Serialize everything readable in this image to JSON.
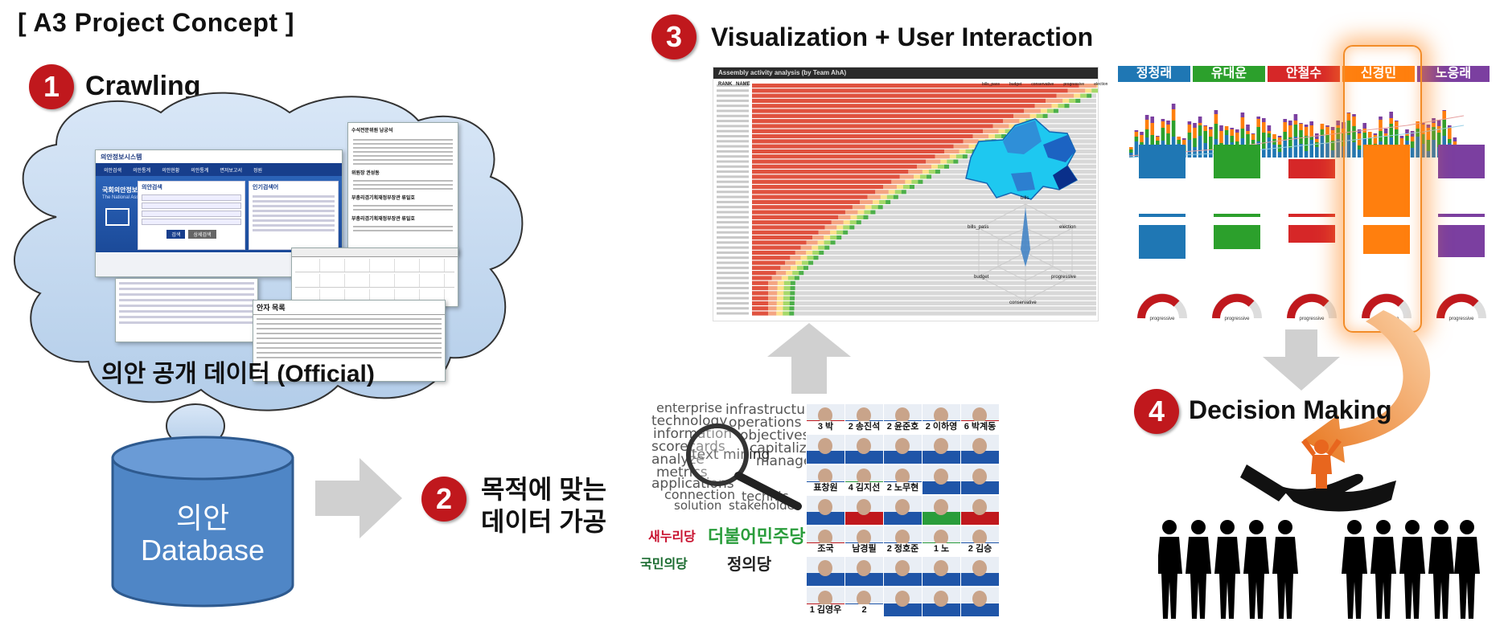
{
  "title": "[ A3 Project Concept ]",
  "steps": [
    {
      "number": "1",
      "label": "Crawling"
    },
    {
      "number": "2",
      "label_line1": "목적에 맞는",
      "label_line2": "데이터 가공"
    },
    {
      "number": "3",
      "label": "Visualization + User Interaction"
    },
    {
      "number": "4",
      "label": "Decision Making"
    }
  ],
  "cloud_caption": "의안 공개 데이터 (Official)",
  "database": {
    "line1": "의안",
    "line2": "Database"
  },
  "assembly_site": {
    "header": "의안정보시스템",
    "nav": [
      "의안검색",
      "의안통계",
      "의안현황",
      "의안통계",
      "면저보고서",
      "정원"
    ],
    "logo_line1": "국회의안정보",
    "logo_line2": "The National Assembly",
    "search_title": "의안검색",
    "buttons": [
      "검색",
      "상세검색"
    ],
    "popular_title": "인기검색어"
  },
  "doc_text": {
    "heading": "안자 목록",
    "items": [
      "수석전문위원 남궁석",
      "위원장 권성동",
      "부총리겸기획재정부장관 류일호",
      "부총리겸기획재정부장관 류일호"
    ]
  },
  "activity_chart": {
    "title": "Assembly activity analysis (by Team AhA)",
    "col_rank": "RANK",
    "col_name": "NAME",
    "legend": [
      "bills_pass",
      "budget",
      "conservative",
      "progressive",
      "election"
    ]
  },
  "radar_labels": [
    "bills",
    "election",
    "progressive",
    "conservative",
    "budget",
    "bills_pass"
  ],
  "candidate_tabs": [
    {
      "name": "정청래",
      "color": "#1f77b4"
    },
    {
      "name": "유대운",
      "color": "#2ca02c"
    },
    {
      "name": "안철수",
      "color": "#d62728"
    },
    {
      "name": "신경민",
      "color": "#ff7f0e"
    },
    {
      "name": "노웅래",
      "color": "#7b3fa0"
    }
  ],
  "gauge_label": "progressive",
  "keywords": [
    "enterprise",
    "infrastructure",
    "technology",
    "operations",
    "information",
    "objectives",
    "scorecards",
    "capitaliz",
    "analyze",
    "text mining",
    "manage",
    "metrics",
    "applications",
    "connection",
    "technic",
    "solution",
    "stakeholder"
  ],
  "parties": [
    {
      "name": "새누리당",
      "color": "#c8102e"
    },
    {
      "name": "더불어민주당",
      "color": "#2a9d3b"
    },
    {
      "name": "국민의당",
      "color": "#1a6b2f"
    },
    {
      "name": "정의당",
      "color": "#222222"
    }
  ],
  "posters": [
    {
      "name": "3 박",
      "color": "#c0181d"
    },
    {
      "name": "2 송진석",
      "color": "#1f55a8"
    },
    {
      "name": "2 윤준호",
      "color": "#1f55a8"
    },
    {
      "name": "2 이하영",
      "color": "#1f55a8"
    },
    {
      "name": "6 박계동",
      "color": "#c0181d"
    },
    {
      "name": "",
      "color": "#1f55a8"
    },
    {
      "name": "",
      "color": "#1f55a8"
    },
    {
      "name": "",
      "color": "#1f55a8"
    },
    {
      "name": "",
      "color": "#1f55a8"
    },
    {
      "name": "",
      "color": "#1f55a8"
    },
    {
      "name": "표창원",
      "color": "#1f55a8"
    },
    {
      "name": "4 김지선",
      "color": "#2a9d3b"
    },
    {
      "name": "2 노무현",
      "color": "#1f55a8"
    },
    {
      "name": "",
      "color": "#1f55a8"
    },
    {
      "name": "",
      "color": "#1f55a8"
    },
    {
      "name": "",
      "color": "#1f55a8"
    },
    {
      "name": "",
      "color": "#c0181d"
    },
    {
      "name": "",
      "color": "#1f55a8"
    },
    {
      "name": "",
      "color": "#2a9d3b"
    },
    {
      "name": "",
      "color": "#c0181d"
    },
    {
      "name": "조국",
      "color": "#c0181d"
    },
    {
      "name": "남경필",
      "color": "#1f55a8"
    },
    {
      "name": "2 정호준",
      "color": "#1f55a8"
    },
    {
      "name": "1 노",
      "color": "#2a9d3b"
    },
    {
      "name": "2 김승",
      "color": "#1f55a8"
    },
    {
      "name": "",
      "color": "#1f55a8"
    },
    {
      "name": "",
      "color": "#1f55a8"
    },
    {
      "name": "",
      "color": "#1f55a8"
    },
    {
      "name": "",
      "color": "#1f55a8"
    },
    {
      "name": "",
      "color": "#1f55a8"
    },
    {
      "name": "1 김영우",
      "color": "#c0181d"
    },
    {
      "name": "2",
      "color": "#1f55a8"
    },
    {
      "name": "",
      "color": "#1f55a8"
    },
    {
      "name": "",
      "color": "#1f55a8"
    },
    {
      "name": "",
      "color": "#1f55a8"
    }
  ]
}
